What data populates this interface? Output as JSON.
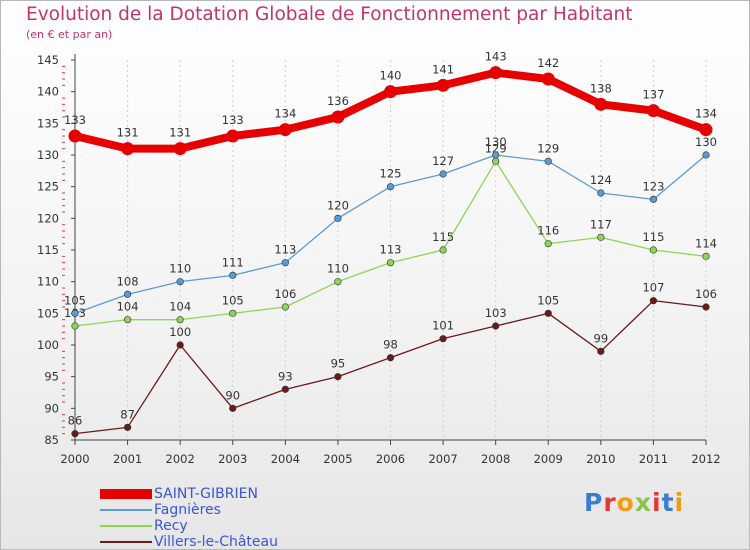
{
  "title": "Evolution de la Dotation Globale de Fonctionnement par Habitant",
  "subtitle": "(en € et par an)",
  "brand": {
    "text": "Proxiti",
    "letter_colors": [
      "#3a7bd5",
      "#e53935",
      "#f39c12",
      "#8bc34a",
      "#e53935",
      "#3a7bd5",
      "#f39c12"
    ]
  },
  "colors": {
    "title": "#c2346a",
    "axis": "#444444",
    "tick_text": "#333333",
    "minor_tick": "#e03070",
    "grid": "#cfcfcf",
    "legend_text": "#3b55d6"
  },
  "chart_data": {
    "type": "line",
    "title": "Evolution de la Dotation Globale de Fonctionnement par Habitant",
    "subtitle": "(en € et par an)",
    "xlabel": "",
    "ylabel": "",
    "x": [
      "2000",
      "2001",
      "2002",
      "2003",
      "2004",
      "2005",
      "2006",
      "2007",
      "2008",
      "2009",
      "2010",
      "2011",
      "2012"
    ],
    "ylim": [
      85,
      145
    ],
    "yticks": [
      85,
      90,
      95,
      100,
      105,
      110,
      115,
      120,
      125,
      130,
      135,
      140,
      145
    ],
    "grid": "vertical",
    "legend_position": "bottom-left",
    "series": [
      {
        "name": "SAINT-GIBRIEN",
        "color": "#e60000",
        "values": [
          133,
          131,
          131,
          133,
          134,
          136,
          140,
          141,
          143,
          142,
          138,
          137,
          134
        ]
      },
      {
        "name": "Fagnières",
        "color": "#5b9bd5",
        "values": [
          105,
          108,
          110,
          111,
          113,
          120,
          125,
          127,
          130,
          129,
          124,
          123,
          130
        ]
      },
      {
        "name": "Recy",
        "color": "#8ed455",
        "values": [
          103,
          104,
          104,
          105,
          106,
          110,
          113,
          115,
          129,
          116,
          117,
          115,
          114
        ]
      },
      {
        "name": "Villers-le-Château",
        "color": "#6b1a1a",
        "values": [
          86,
          87,
          100,
          90,
          93,
          95,
          98,
          101,
          103,
          105,
          99,
          107,
          106
        ]
      }
    ]
  }
}
